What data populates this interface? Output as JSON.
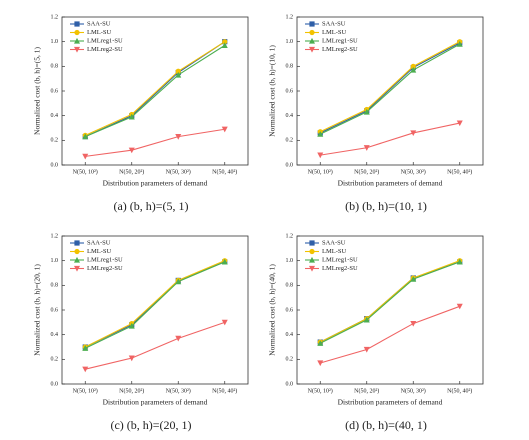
{
  "chart_data": [
    {
      "type": "line",
      "caption": "(a) (b, h)=(5, 1)",
      "x_label": "Distribution parameters of demand",
      "y_label": "Normalized cost (b, h)=(5, 1)",
      "categories": [
        "N(50, 10²)",
        "N(50, 20²)",
        "N(50, 30²)",
        "N(50, 40²)"
      ],
      "ylim": [
        0,
        1.2
      ],
      "yticks": [
        {
          "value": 0,
          "label": "0.0"
        },
        0.2,
        0.4,
        0.6,
        0.8,
        {
          "value": 1,
          "label": "1.0"
        },
        1.2
      ],
      "legend": "upper left",
      "series": [
        {
          "name": "SAA-SU",
          "color": "#2f5fa8",
          "marker": "square",
          "values": [
            0.23,
            0.4,
            0.75,
            1.0
          ]
        },
        {
          "name": "LML-SU",
          "color": "#f2c200",
          "marker": "circle",
          "values": [
            0.24,
            0.41,
            0.76,
            1.0
          ]
        },
        {
          "name": "LMLreg1-SU",
          "color": "#4cae50",
          "marker": "triangle-up",
          "values": [
            0.23,
            0.39,
            0.73,
            0.97
          ]
        },
        {
          "name": "LMLreg2-SU",
          "color": "#f06464",
          "marker": "triangle-down",
          "values": [
            0.07,
            0.12,
            0.23,
            0.29
          ]
        }
      ]
    },
    {
      "type": "line",
      "caption": "(b) (b, h)=(10, 1)",
      "x_label": "Distribution parameters of demand",
      "y_label": "Normalized cost (b, h)=(10, 1)",
      "categories": [
        "N(50, 10²)",
        "N(50, 20²)",
        "N(50, 30²)",
        "N(50, 40²)"
      ],
      "ylim": [
        0,
        1.2
      ],
      "yticks": [
        {
          "value": 0,
          "label": "0.0"
        },
        0.2,
        0.4,
        0.6,
        0.8,
        {
          "value": 1,
          "label": "1.0"
        },
        1.2
      ],
      "legend": "upper left",
      "series": [
        {
          "name": "SAA-SU",
          "color": "#2f5fa8",
          "marker": "square",
          "values": [
            0.26,
            0.44,
            0.79,
            0.99
          ]
        },
        {
          "name": "LML-SU",
          "color": "#f2c200",
          "marker": "circle",
          "values": [
            0.27,
            0.45,
            0.8,
            1.0
          ]
        },
        {
          "name": "LMLreg1-SU",
          "color": "#4cae50",
          "marker": "triangle-up",
          "values": [
            0.25,
            0.43,
            0.77,
            0.98
          ]
        },
        {
          "name": "LMLreg2-SU",
          "color": "#f06464",
          "marker": "triangle-down",
          "values": [
            0.08,
            0.14,
            0.26,
            0.34
          ]
        }
      ]
    },
    {
      "type": "line",
      "caption": "(c) (b, h)=(20, 1)",
      "x_label": "Distribution parameters of demand",
      "y_label": "Normalized cost (b, h)=(20, 1)",
      "categories": [
        "N(50, 10²)",
        "N(50, 20²)",
        "N(50, 30²)",
        "N(50, 40²)"
      ],
      "ylim": [
        0,
        1.2
      ],
      "yticks": [
        {
          "value": 0,
          "label": "0.0"
        },
        0.2,
        0.4,
        0.6,
        0.8,
        {
          "value": 1,
          "label": "1.0"
        },
        1.2
      ],
      "legend": "upper left",
      "series": [
        {
          "name": "SAA-SU",
          "color": "#2f5fa8",
          "marker": "square",
          "values": [
            0.3,
            0.48,
            0.84,
            0.99
          ]
        },
        {
          "name": "LML-SU",
          "color": "#f2c200",
          "marker": "circle",
          "values": [
            0.3,
            0.49,
            0.84,
            1.0
          ]
        },
        {
          "name": "LMLreg1-SU",
          "color": "#4cae50",
          "marker": "triangle-up",
          "values": [
            0.29,
            0.47,
            0.83,
            0.99
          ]
        },
        {
          "name": "LMLreg2-SU",
          "color": "#f06464",
          "marker": "triangle-down",
          "values": [
            0.12,
            0.21,
            0.37,
            0.5
          ]
        }
      ]
    },
    {
      "type": "line",
      "caption": "(d) (b, h)=(40, 1)",
      "x_label": "Distribution parameters of demand",
      "y_label": "Normalized cost (b, h)=(40, 1)",
      "categories": [
        "N(50, 10²)",
        "N(50, 20²)",
        "N(50, 30²)",
        "N(50, 40²)"
      ],
      "ylim": [
        0,
        1.2
      ],
      "yticks": [
        {
          "value": 0,
          "label": "0.0"
        },
        0.2,
        0.4,
        0.6,
        0.8,
        {
          "value": 1,
          "label": "1.0"
        },
        1.2
      ],
      "legend": "upper left",
      "series": [
        {
          "name": "SAA-SU",
          "color": "#2f5fa8",
          "marker": "square",
          "values": [
            0.34,
            0.53,
            0.86,
            0.99
          ]
        },
        {
          "name": "LML-SU",
          "color": "#f2c200",
          "marker": "circle",
          "values": [
            0.34,
            0.53,
            0.86,
            1.0
          ]
        },
        {
          "name": "LMLreg1-SU",
          "color": "#4cae50",
          "marker": "triangle-up",
          "values": [
            0.33,
            0.52,
            0.85,
            0.99
          ]
        },
        {
          "name": "LMLreg2-SU",
          "color": "#f06464",
          "marker": "triangle-down",
          "values": [
            0.17,
            0.28,
            0.49,
            0.63
          ]
        }
      ]
    }
  ]
}
